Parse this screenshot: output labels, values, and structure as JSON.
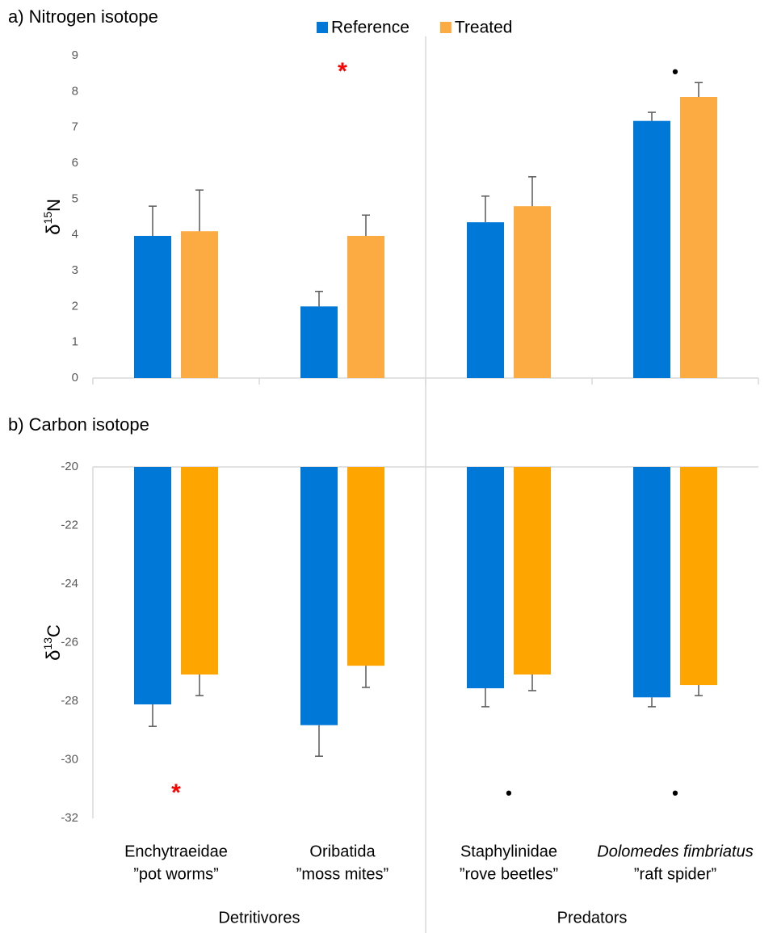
{
  "chart_data": [
    {
      "type": "bar",
      "title": "a) Nitrogen isotope",
      "ylabel": {
        "symbol": "δ",
        "sup": "15",
        "base": "N"
      },
      "categories": [
        null,
        null,
        null,
        null
      ],
      "series": [
        {
          "name": "Reference",
          "color": "#0078d7",
          "values": [
            3.97,
            2.0,
            4.35,
            7.18
          ],
          "errors": [
            0.83,
            0.42,
            0.73,
            0.24
          ]
        },
        {
          "name": "Treated",
          "color": "#fbab42",
          "values": [
            4.1,
            3.97,
            4.8,
            7.85
          ],
          "errors": [
            1.15,
            0.58,
            0.82,
            0.4
          ]
        }
      ],
      "ylim": [
        0,
        9
      ],
      "yticks": [
        0,
        1,
        2,
        3,
        4,
        5,
        6,
        7,
        8,
        9
      ],
      "grid": false,
      "legend": "top",
      "annotations": [
        {
          "text": "*",
          "category": 1,
          "color": "#ff0000"
        },
        {
          "text": "•",
          "category": 3,
          "color": "#000000"
        }
      ]
    },
    {
      "type": "bar",
      "title": "b) Carbon isotope",
      "ylabel": {
        "symbol": "δ",
        "sup": "13",
        "base": "C"
      },
      "categories": [
        [
          "Enchytraeidae",
          "”pot worms”"
        ],
        [
          "Oribatida",
          "”moss mites”"
        ],
        [
          "Staphylinidae",
          "”rove beetles”"
        ],
        [
          "Dolomedes  fimbriatus",
          "”raft spider”"
        ]
      ],
      "italic_first_line": [
        false,
        false,
        false,
        true
      ],
      "groups": [
        {
          "name": "Detritivores",
          "span": 2
        },
        {
          "name": "Predators",
          "span": 2
        }
      ],
      "series": [
        {
          "color": "#0078d7",
          "values": [
            -28.11,
            -28.82,
            -27.56,
            -27.87
          ],
          "errors": [
            0.75,
            1.06,
            0.63,
            0.32
          ]
        },
        {
          "color": "#ffa500",
          "values": [
            -27.09,
            -26.79,
            -27.09,
            -27.45
          ],
          "errors": [
            0.72,
            0.74,
            0.55,
            0.36
          ]
        }
      ],
      "ylim": [
        -32,
        -20
      ],
      "yticks": [
        -20,
        -22,
        -24,
        -26,
        -28,
        -30,
        -32
      ],
      "grid": false,
      "annotations": [
        {
          "text": "*",
          "category": 0,
          "color": "#ff0000"
        },
        {
          "text": "•",
          "category": 2,
          "color": "#000000"
        },
        {
          "text": "•",
          "category": 3,
          "color": "#000000"
        }
      ]
    }
  ]
}
